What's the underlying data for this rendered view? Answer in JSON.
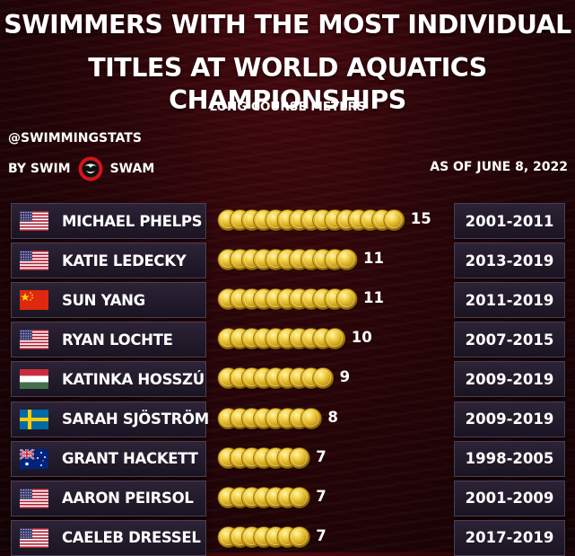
{
  "header": {
    "title_line1": "SWIMMERS WITH THE MOST INDIVIDUAL",
    "title_line2": "TITLES AT WORLD AQUATICS CHAMPIONSHIPS",
    "subtitle": "LONG COURSE METERS",
    "handle": "@SWIMMINGSTATS",
    "brand_prefix": "BY SWIM",
    "brand_suffix": "SWAM",
    "as_of": "AS OF JUNE 8, 2022"
  },
  "colors": {
    "background": "#1e0306",
    "box": "#241c2c",
    "gold": "#e8c13a",
    "text": "#ffffff"
  },
  "chart_data": {
    "type": "bar",
    "title": "SWIMMERS WITH THE MOST INDIVIDUAL TITLES AT WORLD AQUATICS CHAMPIONSHIPS",
    "subtitle": "LONG COURSE METERS",
    "categories": [
      "MICHAEL PHELPS",
      "KATIE LEDECKY",
      "SUN YANG",
      "RYAN LOCHTE",
      "KATINKA HOSSZÚ",
      "SARAH SJÖSTRÖM",
      "GRANT HACKETT",
      "AARON PEIRSOL",
      "CAELEB DRESSEL"
    ],
    "values": [
      15,
      11,
      11,
      10,
      9,
      8,
      7,
      7,
      7
    ],
    "years": [
      "2001-2011",
      "2013-2019",
      "2011-2019",
      "2007-2015",
      "2009-2019",
      "2009-2019",
      "1998-2005",
      "2001-2009",
      "2017-2019"
    ],
    "flags": [
      "usa-flag",
      "usa-flag",
      "china-flag",
      "usa-flag",
      "hungary-flag",
      "sweden-flag",
      "australia-flag",
      "usa-flag",
      "usa-flag"
    ],
    "mark": "gold-medal-icon"
  }
}
